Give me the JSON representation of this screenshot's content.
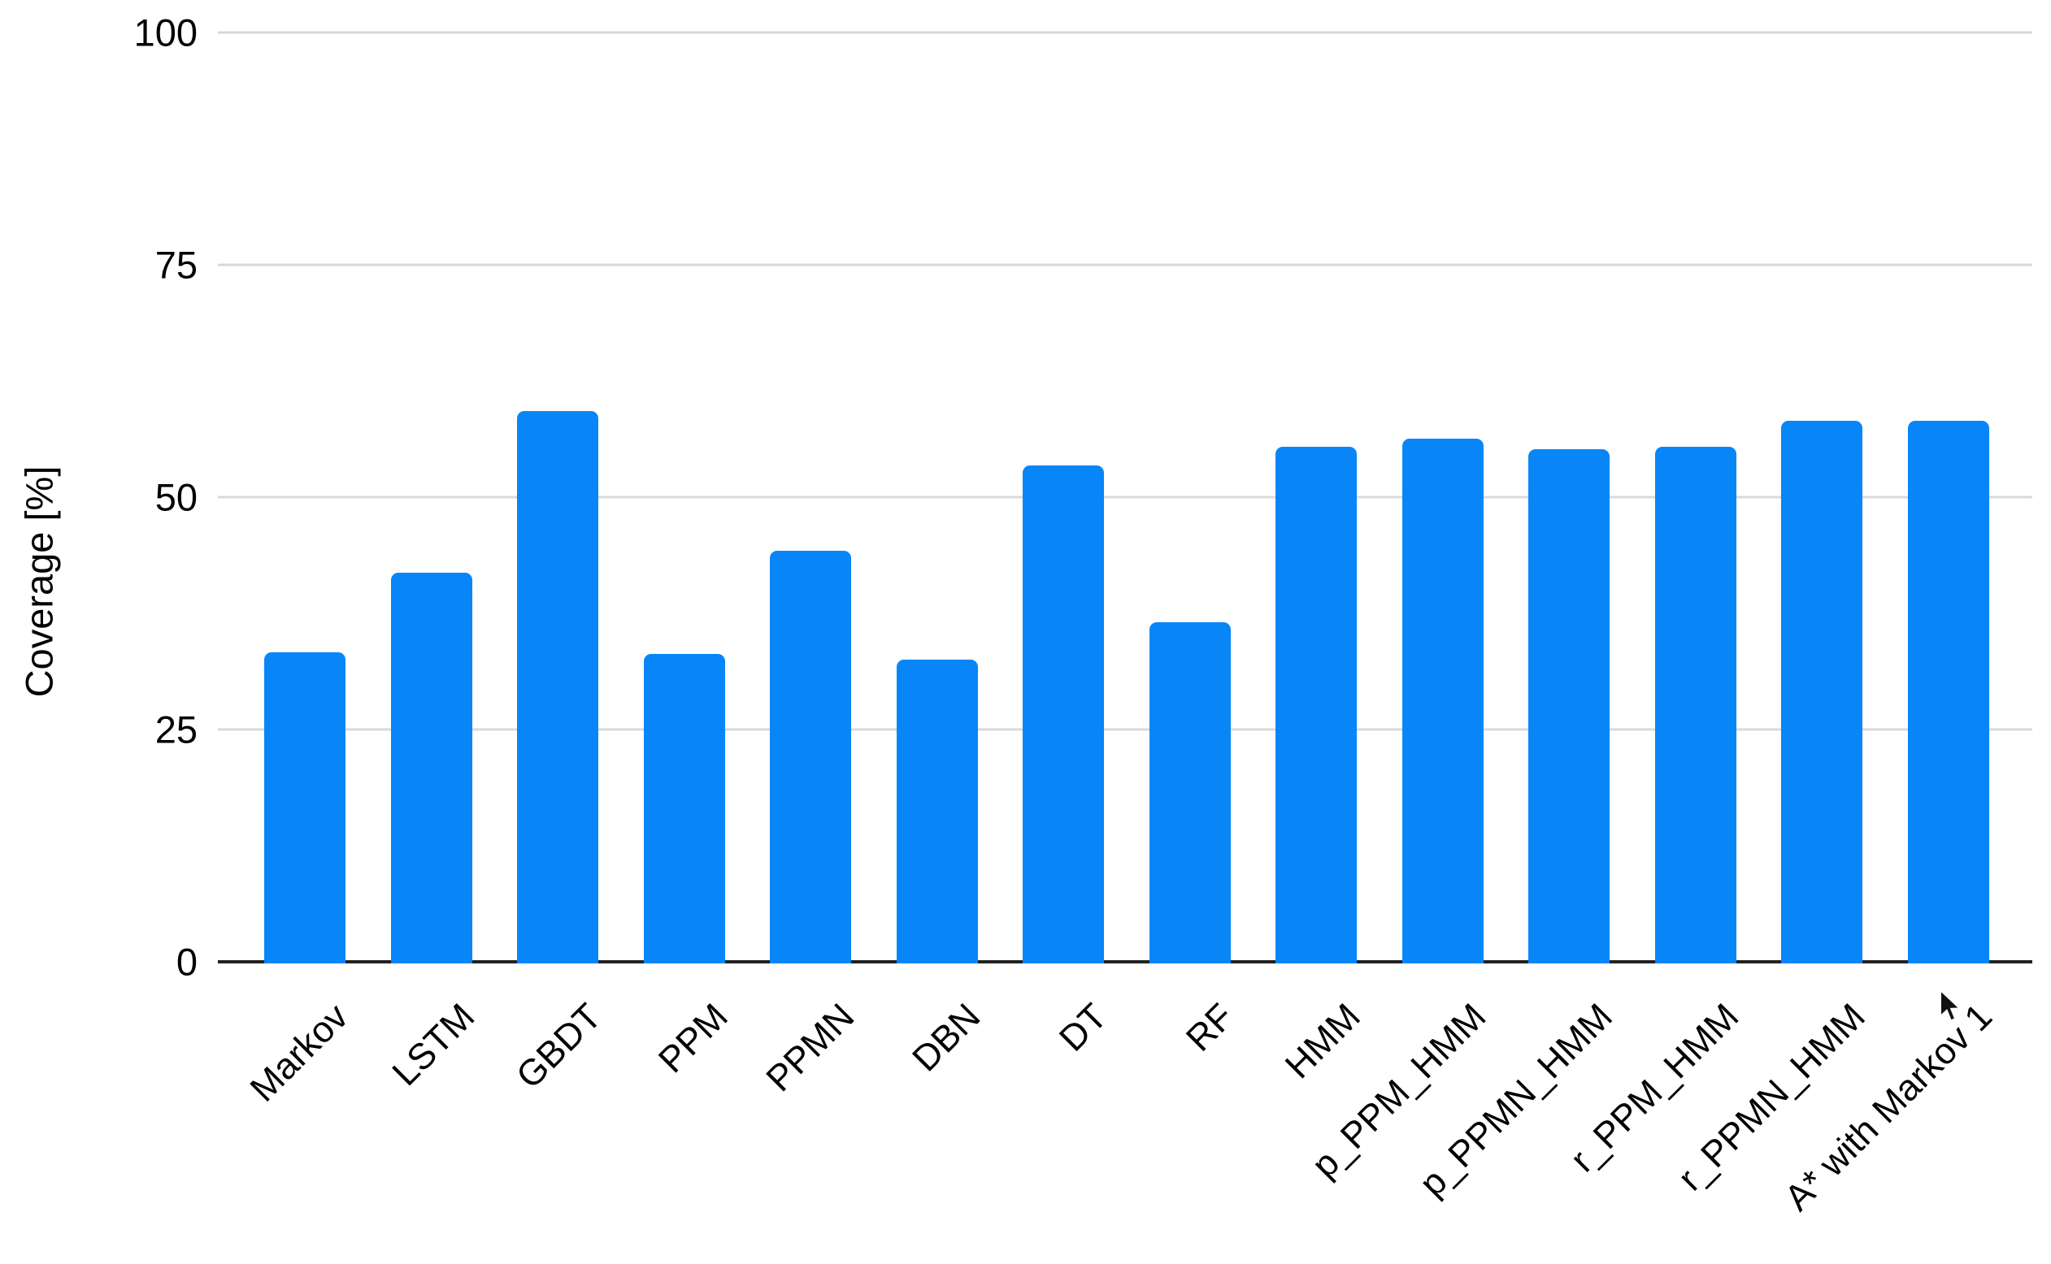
{
  "chart_data": {
    "type": "bar",
    "title": "",
    "xlabel": "",
    "ylabel": "Coverage [%]",
    "categories": [
      "Markov",
      "LSTM",
      "GBDT",
      "PPM",
      "PPMN",
      "DBN",
      "DT",
      "RF",
      "HMM",
      "p_PPM_HMM",
      "p_PPMN_HMM",
      "r_PPM_HMM",
      "r_PPMN_HMM",
      "A* with Markov 1"
    ],
    "values": [
      33.3,
      41.9,
      59.3,
      33.1,
      44.2,
      32.5,
      53.4,
      36.5,
      55.4,
      56.3,
      55.2,
      55.4,
      58.2,
      58.2
    ],
    "ylim": [
      0,
      100
    ],
    "yticks": [
      0,
      25,
      50,
      75,
      100
    ],
    "ytick_labels": [
      "0",
      "25",
      "50",
      "75",
      "100"
    ],
    "grid": true,
    "legend_position": "none",
    "x_label_rotation_deg": 45,
    "bar_color": "#0886f8",
    "gridline_color": "#d9d9d9",
    "axis_color": "#212121",
    "text_color": "#000000",
    "background_color": "#ffffff"
  },
  "icons": {
    "mouse_cursor": "pointer-arrow"
  }
}
